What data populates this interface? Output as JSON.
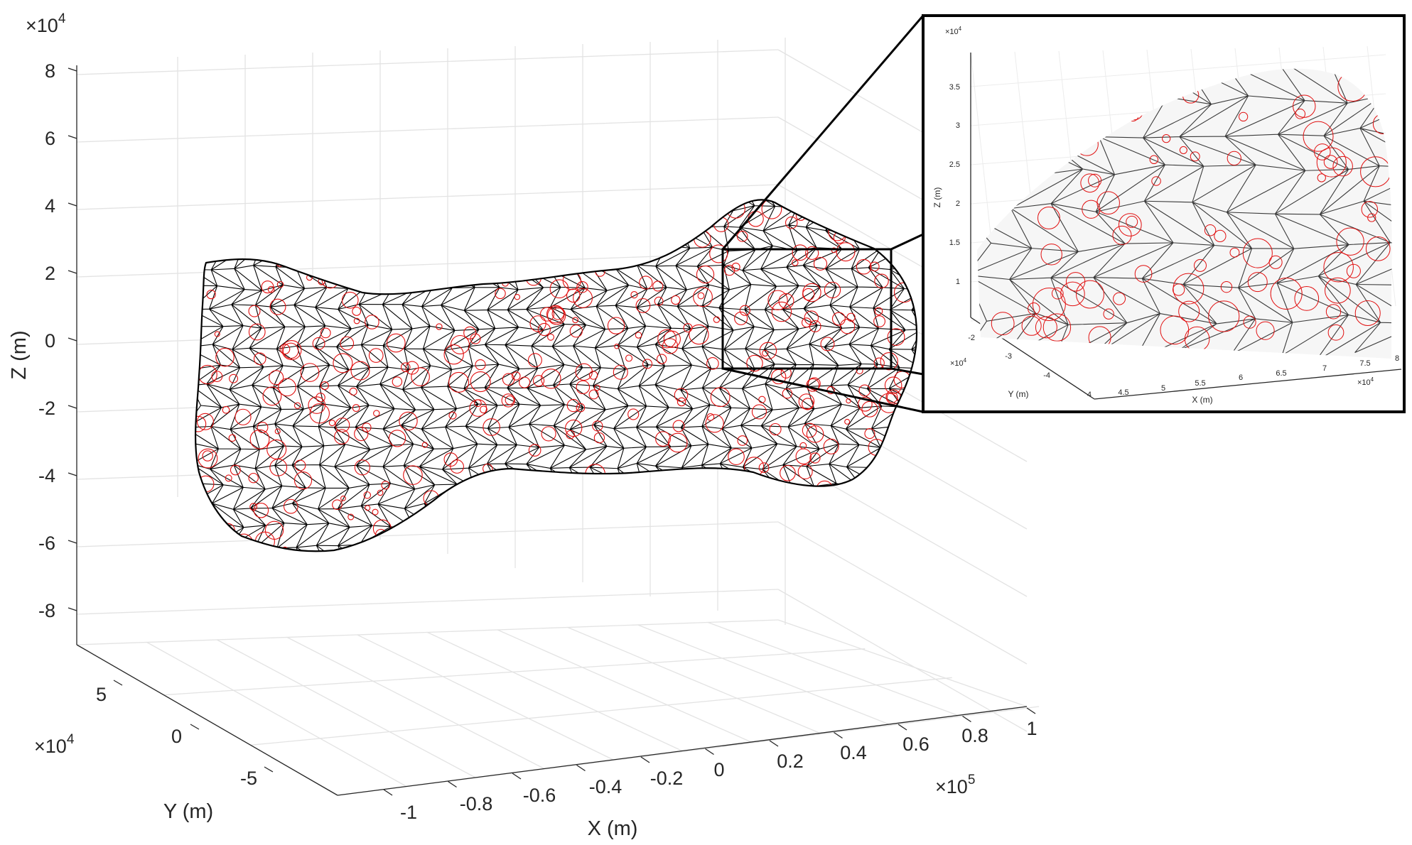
{
  "main_plot": {
    "x_axis": {
      "label": "X (m)",
      "multiplier": "×10",
      "exponent": "5",
      "ticks": [
        "-1",
        "-0.8",
        "-0.6",
        "-0.4",
        "-0.2",
        "0",
        "0.2",
        "0.4",
        "0.6",
        "0.8",
        "1"
      ]
    },
    "y_axis": {
      "label": "Y (m)",
      "multiplier": "×10",
      "exponent": "4",
      "ticks": [
        "5",
        "0",
        "-5"
      ]
    },
    "z_axis": {
      "label": "Z (m)",
      "multiplier": "×10",
      "exponent": "4",
      "ticks": [
        "8",
        "6",
        "4",
        "2",
        "0",
        "-2",
        "-4",
        "-6",
        "-8"
      ]
    }
  },
  "inset_plot": {
    "x_axis": {
      "label": "X (m)",
      "multiplier": "×10",
      "exponent": "4",
      "ticks": [
        "4.5",
        "5",
        "5.5",
        "6",
        "6.5",
        "7",
        "7.5",
        "8"
      ]
    },
    "y_axis": {
      "label": "Y (m)",
      "multiplier": "×10",
      "exponent": "4",
      "ticks": [
        "-2",
        "-3",
        "-4",
        "4"
      ]
    },
    "z_axis": {
      "label": "Z (m)",
      "multiplier": "×10",
      "exponent": "4",
      "ticks": [
        "3.5",
        "3",
        "2.5",
        "2",
        "1.5",
        "1"
      ]
    }
  },
  "colors": {
    "mesh": "#000000",
    "craters": "#e11010",
    "grid": "#e3e3e3",
    "axis": "#262626"
  }
}
